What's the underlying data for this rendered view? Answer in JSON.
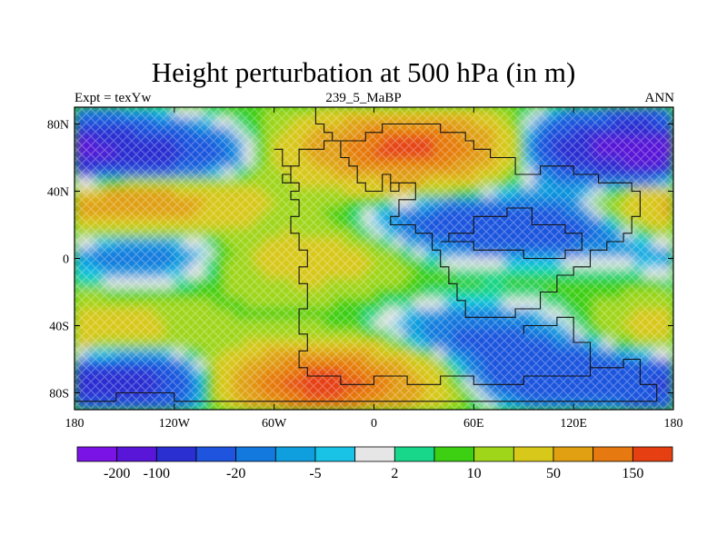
{
  "chart_data": {
    "type": "heatmap",
    "title": "Height perturbation at 500 hPa (in m)",
    "subtitle_left": "Expt = texYw",
    "subtitle_center": "239_5_MaBP",
    "subtitle_right": "ANN",
    "xlim": [
      -180,
      180
    ],
    "ylim": [
      -90,
      90
    ],
    "x_ticks": [
      {
        "value": -180,
        "label": "180"
      },
      {
        "value": -120,
        "label": "120W"
      },
      {
        "value": -60,
        "label": "60W"
      },
      {
        "value": 0,
        "label": "0"
      },
      {
        "value": 60,
        "label": "60E"
      },
      {
        "value": 120,
        "label": "120E"
      },
      {
        "value": 180,
        "label": "180"
      }
    ],
    "y_ticks": [
      {
        "value": 80,
        "label": "80N"
      },
      {
        "value": 40,
        "label": "40N"
      },
      {
        "value": 0,
        "label": "0"
      },
      {
        "value": -40,
        "label": "40S"
      },
      {
        "value": -80,
        "label": "80S"
      }
    ],
    "colorbar": {
      "levels": [
        -200,
        -100,
        -50,
        -20,
        -10,
        -5,
        -2,
        2,
        5,
        10,
        20,
        50,
        100,
        150
      ],
      "level_labels": [
        "-200",
        "-100",
        "-20",
        "-5",
        "2",
        "10",
        "50",
        "150"
      ],
      "colors": [
        "#7a14e6",
        "#5a16d8",
        "#2a2fd2",
        "#1f55de",
        "#1479de",
        "#0f9fdf",
        "#18c3e6",
        "#e6e6e6",
        "#18d68a",
        "#3ccf12",
        "#9fd61a",
        "#d8c81a",
        "#e0a012",
        "#e67a10",
        "#e64012"
      ]
    },
    "features": [
      {
        "name": "anomaly",
        "lon": -140,
        "lat": 60,
        "value": -80
      },
      {
        "name": "anomaly",
        "lon": -130,
        "lat": 35,
        "value": 60
      },
      {
        "name": "anomaly",
        "lon": -140,
        "lat": 5,
        "value": -30
      },
      {
        "name": "anomaly",
        "lon": -170,
        "lat": -45,
        "value": 30
      },
      {
        "name": "anomaly",
        "lon": -150,
        "lat": -75,
        "value": -80
      },
      {
        "name": "anomaly",
        "lon": 20,
        "lat": 65,
        "value": 160
      },
      {
        "name": "anomaly",
        "lon": 150,
        "lat": 65,
        "value": -120
      },
      {
        "name": "anomaly",
        "lon": 50,
        "lat": 20,
        "value": -35
      },
      {
        "name": "anomaly",
        "lon": 120,
        "lat": 20,
        "value": -40
      },
      {
        "name": "anomaly",
        "lon": 175,
        "lat": 30,
        "value": 45
      },
      {
        "name": "anomaly",
        "lon": -30,
        "lat": -75,
        "value": 170
      },
      {
        "name": "anomaly",
        "lon": 110,
        "lat": -70,
        "value": -50
      },
      {
        "name": "anomaly",
        "lon": 60,
        "lat": -45,
        "value": -30
      },
      {
        "name": "anomaly",
        "lon": -40,
        "lat": 0,
        "value": 25
      }
    ],
    "coastlines": [
      [
        [
          -35,
          90
        ],
        [
          -35,
          80
        ],
        [
          -30,
          80
        ],
        [
          -30,
          75
        ],
        [
          -25,
          75
        ],
        [
          -25,
          70
        ],
        [
          -5,
          70
        ],
        [
          -5,
          75
        ],
        [
          5,
          75
        ],
        [
          5,
          80
        ],
        [
          40,
          80
        ],
        [
          40,
          75
        ],
        [
          55,
          75
        ],
        [
          55,
          70
        ],
        [
          60,
          70
        ],
        [
          60,
          65
        ],
        [
          70,
          65
        ],
        [
          70,
          60
        ],
        [
          85,
          60
        ],
        [
          85,
          50
        ],
        [
          100,
          50
        ],
        [
          100,
          55
        ],
        [
          120,
          55
        ],
        [
          120,
          50
        ],
        [
          135,
          50
        ],
        [
          135,
          45
        ],
        [
          155,
          45
        ],
        [
          155,
          40
        ],
        [
          160,
          40
        ],
        [
          160,
          25
        ],
        [
          155,
          25
        ],
        [
          155,
          15
        ],
        [
          150,
          15
        ],
        [
          150,
          10
        ],
        [
          140,
          10
        ],
        [
          140,
          5
        ],
        [
          130,
          5
        ],
        [
          130,
          -5
        ],
        [
          120,
          -5
        ],
        [
          120,
          -10
        ],
        [
          110,
          -10
        ],
        [
          110,
          -20
        ],
        [
          100,
          -20
        ],
        [
          100,
          -30
        ],
        [
          85,
          -30
        ],
        [
          85,
          -35
        ],
        [
          55,
          -35
        ],
        [
          55,
          -25
        ],
        [
          50,
          -25
        ],
        [
          50,
          -15
        ],
        [
          45,
          -15
        ],
        [
          45,
          -5
        ],
        [
          40,
          -5
        ],
        [
          40,
          5
        ],
        [
          35,
          5
        ],
        [
          35,
          15
        ],
        [
          25,
          15
        ],
        [
          25,
          20
        ],
        [
          10,
          20
        ],
        [
          10,
          25
        ],
        [
          15,
          25
        ],
        [
          15,
          35
        ],
        [
          25,
          35
        ],
        [
          25,
          45
        ],
        [
          15,
          45
        ],
        [
          15,
          40
        ],
        [
          10,
          40
        ],
        [
          10,
          50
        ],
        [
          5,
          50
        ],
        [
          5,
          40
        ],
        [
          -5,
          40
        ],
        [
          -5,
          45
        ],
        [
          -10,
          45
        ],
        [
          -10,
          55
        ],
        [
          -15,
          55
        ],
        [
          -15,
          60
        ],
        [
          -20,
          60
        ],
        [
          -20,
          70
        ],
        [
          -30,
          70
        ],
        [
          -30,
          65
        ],
        [
          -45,
          65
        ],
        [
          -45,
          55
        ],
        [
          -50,
          55
        ],
        [
          -50,
          45
        ],
        [
          -45,
          45
        ],
        [
          -45,
          40
        ],
        [
          -50,
          40
        ],
        [
          -50,
          35
        ],
        [
          -45,
          35
        ],
        [
          -45,
          25
        ],
        [
          -50,
          25
        ],
        [
          -50,
          15
        ],
        [
          -45,
          15
        ],
        [
          -45,
          5
        ],
        [
          -40,
          5
        ],
        [
          -40,
          -5
        ],
        [
          -45,
          -5
        ],
        [
          -45,
          -15
        ],
        [
          -40,
          -15
        ],
        [
          -40,
          -30
        ],
        [
          -45,
          -30
        ],
        [
          -45,
          -45
        ],
        [
          -40,
          -45
        ],
        [
          -40,
          -55
        ],
        [
          -45,
          -55
        ],
        [
          -45,
          -65
        ],
        [
          -40,
          -65
        ],
        [
          -40,
          -70
        ],
        [
          -20,
          -70
        ],
        [
          -20,
          -75
        ],
        [
          0,
          -75
        ],
        [
          0,
          -70
        ],
        [
          20,
          -70
        ],
        [
          20,
          -75
        ],
        [
          40,
          -75
        ],
        [
          40,
          -70
        ],
        [
          60,
          -70
        ],
        [
          60,
          -75
        ],
        [
          90,
          -75
        ],
        [
          90,
          -70
        ],
        [
          130,
          -70
        ],
        [
          130,
          -65
        ],
        [
          150,
          -65
        ],
        [
          150,
          -60
        ],
        [
          160,
          -60
        ],
        [
          160,
          -75
        ],
        [
          170,
          -75
        ],
        [
          170,
          -85
        ],
        [
          -120,
          -85
        ],
        [
          -120,
          -80
        ],
        [
          -155,
          -80
        ],
        [
          -155,
          -85
        ],
        [
          -180,
          -85
        ]
      ],
      [
        [
          -60,
          65
        ],
        [
          -55,
          65
        ],
        [
          -55,
          55
        ],
        [
          -50,
          55
        ]
      ],
      [
        [
          -50,
          50
        ],
        [
          -55,
          50
        ],
        [
          -55,
          45
        ],
        [
          -50,
          45
        ]
      ],
      [
        [
          10,
          45
        ],
        [
          15,
          45
        ]
      ],
      [
        [
          40,
          10
        ],
        [
          45,
          10
        ],
        [
          45,
          15
        ],
        [
          60,
          15
        ],
        [
          60,
          25
        ],
        [
          80,
          25
        ],
        [
          80,
          30
        ],
        [
          95,
          30
        ],
        [
          95,
          20
        ],
        [
          115,
          20
        ],
        [
          115,
          15
        ],
        [
          125,
          15
        ],
        [
          125,
          5
        ],
        [
          115,
          5
        ],
        [
          115,
          0
        ],
        [
          90,
          0
        ],
        [
          90,
          5
        ],
        [
          60,
          5
        ],
        [
          60,
          10
        ],
        [
          40,
          10
        ]
      ],
      [
        [
          90,
          -45
        ],
        [
          90,
          -40
        ],
        [
          110,
          -40
        ],
        [
          110,
          -35
        ],
        [
          120,
          -35
        ],
        [
          120,
          -50
        ],
        [
          130,
          -50
        ],
        [
          130,
          -65
        ]
      ]
    ]
  }
}
